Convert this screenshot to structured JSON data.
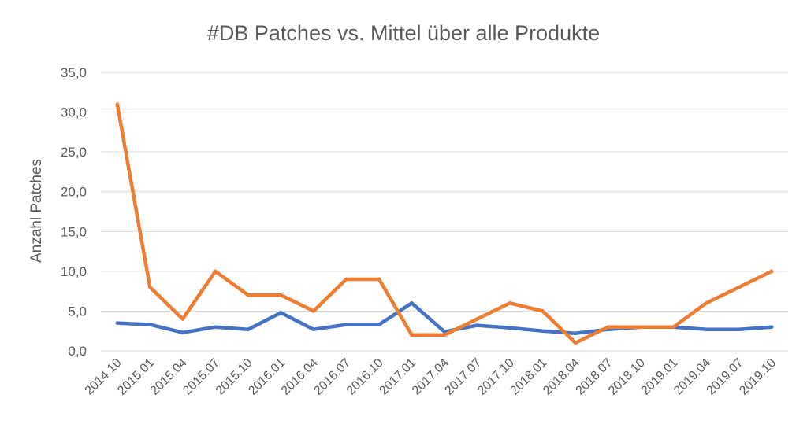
{
  "chart_data": {
    "type": "line",
    "title": "#DB Patches vs. Mittel über alle Produkte",
    "xlabel": "",
    "ylabel": "Anzahl Patches",
    "ylim": [
      0,
      35
    ],
    "yticks": [
      "0,0",
      "5,0",
      "10,0",
      "15,0",
      "20,0",
      "25,0",
      "30,0",
      "35,0"
    ],
    "grid": true,
    "legend": "none",
    "categories": [
      "2014.10",
      "2015.01",
      "2015.04",
      "2015.07",
      "2015.10",
      "2016.01",
      "2016.04",
      "2016.07",
      "2016.10",
      "2017.01",
      "2017.04",
      "2017.07",
      "2017.10",
      "2018.01",
      "2018.04",
      "2018.07",
      "2018.10",
      "2019.01",
      "2019.04",
      "2019.07",
      "2019.10"
    ],
    "series": [
      {
        "color": "#4472C4",
        "values": [
          3.5,
          3.3,
          2.3,
          3.0,
          2.7,
          4.8,
          2.7,
          3.3,
          3.3,
          6.0,
          2.4,
          3.2,
          2.9,
          2.5,
          2.2,
          2.7,
          3.0,
          3.0,
          2.7,
          2.7,
          3.0
        ]
      },
      {
        "color": "#ED7D31",
        "values": [
          31.0,
          8.0,
          4.0,
          10.0,
          7.0,
          7.0,
          5.0,
          9.0,
          9.0,
          2.0,
          2.0,
          4.0,
          6.0,
          5.0,
          1.0,
          3.0,
          3.0,
          3.0,
          6.0,
          8.0,
          10.0
        ]
      }
    ]
  }
}
